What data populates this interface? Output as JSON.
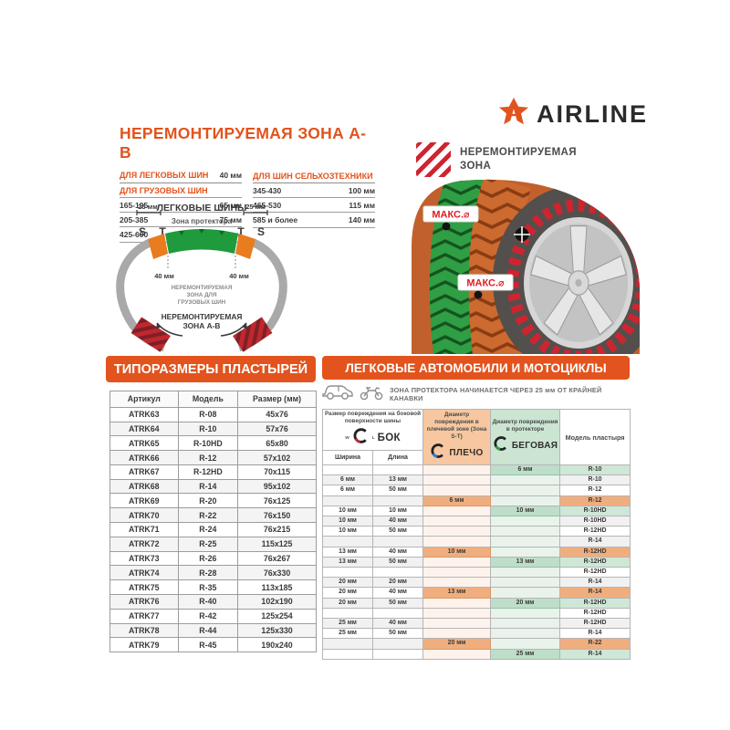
{
  "logo": {
    "brand": "AIRLINE"
  },
  "colors": {
    "accent": "#e2531d",
    "red": "#cf2430",
    "green": "#2f9e44",
    "dark": "#3a3a3a",
    "shoulder_header": "#f6c7a0",
    "tread_header": "#cbe5d2",
    "shoulder_cell": "#f0ae7e",
    "tread_cell": "#bedec9"
  },
  "nonrepair": {
    "title": "НЕРЕМОНТИРУЕМАЯ ЗОНА A-B",
    "passenger_label": "ДЛЯ ЛЕГКОВЫХ ШИН",
    "passenger_value": "40 мм",
    "truck_label": "ДЛЯ ГРУЗОВЫХ ШИН",
    "truck_rows": [
      [
        "165-195",
        "65 мм"
      ],
      [
        "205-385",
        "75 мм"
      ],
      [
        "425-600",
        "90 мм"
      ]
    ],
    "agro_label": "ДЛЯ ШИН СЕЛЬХОЗТЕХНИКИ",
    "agro_rows": [
      [
        "345-430",
        "100 мм"
      ],
      [
        "465-530",
        "115 мм"
      ],
      [
        "585 и более",
        "140 мм"
      ]
    ]
  },
  "diagram": {
    "left_margin": "25 мм",
    "right_margin": "25 мм",
    "title": "ЛЕГКОВЫЕ ШИНЫ",
    "subtitle": "Зона протектора",
    "letters": [
      "S",
      "T",
      "T",
      "S"
    ],
    "left_width": "40 мм",
    "right_width": "40 мм",
    "center_note": [
      "НЕРЕМОНТИРУЕМАЯ",
      "ЗОНА ДЛЯ",
      "ГРУЗОВЫХ ШИН"
    ],
    "zone_note": [
      "НЕРЕМОНТИРУЕМАЯ",
      "ЗОНА A-B"
    ]
  },
  "badge": {
    "lines": [
      "НЕРЕМОНТИРУЕМАЯ",
      "ЗОНА"
    ]
  },
  "tire": {
    "max_label": "МАКС.⌀"
  },
  "patch_table": {
    "banner": "ТИПОРАЗМЕРЫ ПЛАСТЫРЕЙ",
    "headers": [
      "Артикул",
      "Модель",
      "Размер (мм)"
    ],
    "rows": [
      [
        "ATRK63",
        "R-08",
        "45x76"
      ],
      [
        "ATRK64",
        "R-10",
        "57x76"
      ],
      [
        "ATRK65",
        "R-10HD",
        "65x80"
      ],
      [
        "ATRK66",
        "R-12",
        "57x102"
      ],
      [
        "ATRK67",
        "R-12HD",
        "70x115"
      ],
      [
        "ATRK68",
        "R-14",
        "95x102"
      ],
      [
        "ATRK69",
        "R-20",
        "76x125"
      ],
      [
        "ATRK70",
        "R-22",
        "76x150"
      ],
      [
        "ATRK71",
        "R-24",
        "76x215"
      ],
      [
        "ATRK72",
        "R-25",
        "115x125"
      ],
      [
        "ATRK73",
        "R-26",
        "76x267"
      ],
      [
        "ATRK74",
        "R-28",
        "76x330"
      ],
      [
        "ATRK75",
        "R-35",
        "113x185"
      ],
      [
        "ATRK76",
        "R-40",
        "102x190"
      ],
      [
        "ATRK77",
        "R-42",
        "125x254"
      ],
      [
        "ATRK78",
        "R-44",
        "125x330"
      ],
      [
        "ATRK79",
        "R-45",
        "190x240"
      ]
    ]
  },
  "repair_table": {
    "banner": "ЛЕГКОВЫЕ АВТОМОБИЛИ И МОТОЦИКЛЫ",
    "note": "ЗОНА ПРОТЕКТОРА НАЧИНАЕТСЯ ЧЕРЕЗ 25 мм ОТ КРАЙНЕЙ КАНАВКИ",
    "col_side": "Размер повреждения на боковой поверхности шины",
    "side_icon_label": "БОК",
    "side_marks": [
      "W",
      "L"
    ],
    "col_shoulder": "Диаметр повреждения в плечевой зоне (Зона S-T)",
    "shoulder_icon_label": "ПЛЕЧО",
    "col_tread": "Диаметр повреждения в протекторе",
    "tread_icon_label": "БЕГОВАЯ",
    "col_model": "Модель пластыря",
    "sub_width": "Ширина",
    "sub_length": "Длина",
    "rows": [
      {
        "w": "",
        "l": "",
        "sh": "",
        "tr": "6 мм",
        "m": "R-10",
        "hl": "tr"
      },
      {
        "w": "6 мм",
        "l": "13 мм",
        "sh": "",
        "tr": "",
        "m": "R-10",
        "hl": ""
      },
      {
        "w": "6 мм",
        "l": "50 мм",
        "sh": "",
        "tr": "",
        "m": "R-12",
        "hl": ""
      },
      {
        "w": "",
        "l": "",
        "sh": "6 мм",
        "tr": "",
        "m": "R-12",
        "hl": "sh"
      },
      {
        "w": "10 мм",
        "l": "10 мм",
        "sh": "",
        "tr": "10 мм",
        "m": "R-10HD",
        "hl": "tr"
      },
      {
        "w": "10 мм",
        "l": "40 мм",
        "sh": "",
        "tr": "",
        "m": "R-10HD",
        "hl": ""
      },
      {
        "w": "10 мм",
        "l": "50 мм",
        "sh": "",
        "tr": "",
        "m": "R-12HD",
        "hl": ""
      },
      {
        "w": "",
        "l": "",
        "sh": "",
        "tr": "",
        "m": "R-14",
        "hl": ""
      },
      {
        "w": "13 мм",
        "l": "40 мм",
        "sh": "10 мм",
        "tr": "",
        "m": "R-12HD",
        "hl": "sh"
      },
      {
        "w": "13 мм",
        "l": "50 мм",
        "sh": "",
        "tr": "13 мм",
        "m": "R-12HD",
        "hl": "tr"
      },
      {
        "w": "",
        "l": "",
        "sh": "",
        "tr": "",
        "m": "R-12HD",
        "hl": ""
      },
      {
        "w": "20 мм",
        "l": "20 мм",
        "sh": "",
        "tr": "",
        "m": "R-14",
        "hl": ""
      },
      {
        "w": "20 мм",
        "l": "40 мм",
        "sh": "13 мм",
        "tr": "",
        "m": "R-14",
        "hl": "sh"
      },
      {
        "w": "20 мм",
        "l": "50 мм",
        "sh": "",
        "tr": "20 мм",
        "m": "R-12HD",
        "hl": "tr"
      },
      {
        "w": "",
        "l": "",
        "sh": "",
        "tr": "",
        "m": "R-12HD",
        "hl": ""
      },
      {
        "w": "25 мм",
        "l": "40 мм",
        "sh": "",
        "tr": "",
        "m": "R-12HD",
        "hl": ""
      },
      {
        "w": "25 мм",
        "l": "50 мм",
        "sh": "",
        "tr": "",
        "m": "R-14",
        "hl": ""
      },
      {
        "w": "",
        "l": "",
        "sh": "20 мм",
        "tr": "",
        "m": "R-22",
        "hl": "sh"
      },
      {
        "w": "",
        "l": "",
        "sh": "",
        "tr": "25 мм",
        "m": "R-14",
        "hl": "tr"
      }
    ]
  }
}
